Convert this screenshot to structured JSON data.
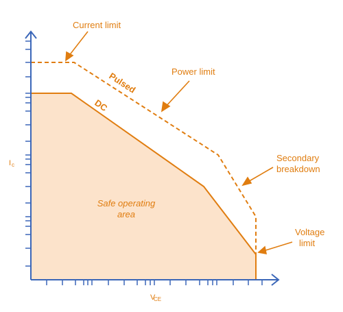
{
  "labels": {
    "current_limit": "Current limit",
    "power_limit": "Power limit",
    "pulsed": "Pulsed",
    "dc": "DC",
    "secondary_line1": "Secondary",
    "secondary_line2": "breakdown",
    "voltage_line1": "Voltage",
    "voltage_line2": "limit",
    "safe_line1": "Safe operating",
    "safe_line2": "area"
  },
  "axes": {
    "y_main": "I",
    "y_sub": "c",
    "x_main": "V",
    "x_sub": "CE"
  },
  "colors": {
    "axis": "#3a66b8",
    "accent": "#e07d10",
    "area_fill": "#fce3cb"
  }
}
